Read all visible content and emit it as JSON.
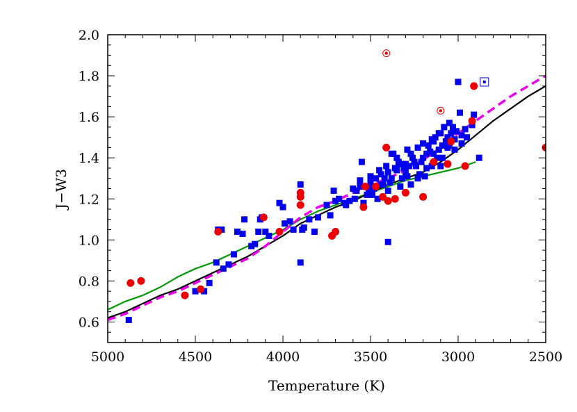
{
  "chart_data": {
    "type": "scatter",
    "title": "",
    "xlabel": "Temperature (K)",
    "ylabel": "J−W3",
    "xlim": [
      5000,
      2500
    ],
    "ylim": [
      0.5,
      2.0
    ],
    "x_reversed": true,
    "grid": false,
    "x_ticks": [
      5000,
      4500,
      4000,
      3500,
      3000,
      2500
    ],
    "x_tick_labels": [
      "5000",
      "4500",
      "4000",
      "3500",
      "3000",
      "2500"
    ],
    "y_ticks": [
      0.6,
      0.8,
      1.0,
      1.2,
      1.4,
      1.6,
      1.8,
      2.0
    ],
    "y_tick_labels": [
      "0.6",
      "0.8",
      "1.0",
      "1.2",
      "1.4",
      "1.6",
      "1.8",
      "2.0"
    ],
    "colors": {
      "blue_squares": "#0000ee",
      "red_circles": "#ee0000",
      "green_line": "#009900",
      "black_line": "#000000",
      "magenta_dashed": "#ee00ee"
    },
    "series": [
      {
        "marker": "square",
        "color": "#0000ee",
        "points": [
          [
            4880,
            0.61
          ],
          [
            4500,
            0.75
          ],
          [
            4450,
            0.75
          ],
          [
            4420,
            0.79
          ],
          [
            4380,
            0.89
          ],
          [
            4340,
            0.86
          ],
          [
            4310,
            0.88
          ],
          [
            4280,
            0.93
          ],
          [
            4370,
            1.05
          ],
          [
            4350,
            1.05
          ],
          [
            4260,
            1.04
          ],
          [
            4230,
            1.03
          ],
          [
            4220,
            1.1
          ],
          [
            4180,
            0.97
          ],
          [
            4160,
            0.98
          ],
          [
            4140,
            1.04
          ],
          [
            4130,
            1.1
          ],
          [
            4120,
            1.11
          ],
          [
            4100,
            1.04
          ],
          [
            4080,
            1.02
          ],
          [
            4020,
            1.18
          ],
          [
            4000,
            1.16
          ],
          [
            3990,
            1.08
          ],
          [
            3960,
            1.09
          ],
          [
            3940,
            1.05
          ],
          [
            3900,
            1.27
          ],
          [
            3900,
            1.22
          ],
          [
            3890,
            1.05
          ],
          [
            3880,
            1.06
          ],
          [
            3900,
            0.89
          ],
          [
            3850,
            1.1
          ],
          [
            3820,
            1.04
          ],
          [
            3800,
            1.11
          ],
          [
            3750,
            1.17
          ],
          [
            3730,
            1.12
          ],
          [
            3710,
            1.24
          ],
          [
            3700,
            1.19
          ],
          [
            3680,
            1.2
          ],
          [
            3650,
            1.18
          ],
          [
            3640,
            1.17
          ],
          [
            3620,
            1.19
          ],
          [
            3600,
            1.25
          ],
          [
            3590,
            1.2
          ],
          [
            3580,
            1.24
          ],
          [
            3560,
            1.29
          ],
          [
            3550,
            1.38
          ],
          [
            3540,
            1.18
          ],
          [
            3520,
            1.22
          ],
          [
            3510,
            1.25
          ],
          [
            3500,
            1.28
          ],
          [
            3490,
            1.22
          ],
          [
            3480,
            1.25
          ],
          [
            3470,
            1.3
          ],
          [
            3460,
            1.2
          ],
          [
            3450,
            1.34
          ],
          [
            3440,
            1.32
          ],
          [
            3430,
            1.27
          ],
          [
            3420,
            1.3
          ],
          [
            3410,
            1.36
          ],
          [
            3400,
            1.33
          ],
          [
            3400,
            1.24
          ],
          [
            3400,
            0.99
          ],
          [
            3390,
            1.28
          ],
          [
            3380,
            1.3
          ],
          [
            3370,
            1.42
          ],
          [
            3360,
            1.35
          ],
          [
            3350,
            1.4
          ],
          [
            3340,
            1.38
          ],
          [
            3330,
            1.26
          ],
          [
            3320,
            1.3
          ],
          [
            3310,
            1.35
          ],
          [
            3300,
            1.33
          ],
          [
            3300,
            1.37
          ],
          [
            3290,
            1.44
          ],
          [
            3280,
            1.36
          ],
          [
            3270,
            1.27
          ],
          [
            3260,
            1.4
          ],
          [
            3250,
            1.38
          ],
          [
            3240,
            1.36
          ],
          [
            3230,
            1.45
          ],
          [
            3220,
            1.32
          ],
          [
            3210,
            1.38
          ],
          [
            3200,
            1.4
          ],
          [
            3190,
            1.31
          ],
          [
            3180,
            1.42
          ],
          [
            3170,
            1.46
          ],
          [
            3160,
            1.43
          ],
          [
            3150,
            1.36
          ],
          [
            3140,
            1.48
          ],
          [
            3130,
            1.5
          ],
          [
            3120,
            1.4
          ],
          [
            3110,
            1.44
          ],
          [
            3100,
            1.52
          ],
          [
            3090,
            1.46
          ],
          [
            3080,
            1.55
          ],
          [
            3070,
            1.48
          ],
          [
            3060,
            1.5
          ],
          [
            3050,
            1.57
          ],
          [
            3040,
            1.52
          ],
          [
            3030,
            1.55
          ],
          [
            3020,
            1.49
          ],
          [
            3010,
            1.53
          ],
          [
            3000,
            1.77
          ],
          [
            2990,
            1.62
          ],
          [
            2980,
            1.51
          ],
          [
            2960,
            1.54
          ],
          [
            2950,
            1.5
          ],
          [
            2920,
            1.56
          ],
          [
            2910,
            1.61
          ],
          [
            2880,
            1.4
          ],
          [
            3380,
            1.42
          ],
          [
            3330,
            1.37
          ],
          [
            3270,
            1.42
          ],
          [
            3180,
            1.35
          ],
          [
            3140,
            1.42
          ],
          [
            3100,
            1.36
          ],
          [
            3060,
            1.45
          ],
          [
            3020,
            1.44
          ],
          [
            2980,
            1.47
          ],
          [
            3440,
            1.27
          ],
          [
            3500,
            1.31
          ],
          [
            3560,
            1.26
          ],
          [
            3230,
            1.3
          ],
          [
            3290,
            1.31
          ],
          [
            3350,
            1.34
          ],
          [
            3200,
            1.47
          ],
          [
            3150,
            1.49
          ],
          [
            3110,
            1.52
          ],
          [
            3090,
            1.4
          ],
          [
            3050,
            1.46
          ]
        ]
      },
      {
        "marker": "circle",
        "color": "#ee0000",
        "points": [
          [
            4870,
            0.79
          ],
          [
            4810,
            0.8
          ],
          [
            4560,
            0.73
          ],
          [
            4470,
            0.76
          ],
          [
            4370,
            1.04
          ],
          [
            4110,
            1.11
          ],
          [
            4020,
            1.04
          ],
          [
            3900,
            1.23
          ],
          [
            3900,
            1.21
          ],
          [
            3900,
            1.17
          ],
          [
            3720,
            1.02
          ],
          [
            3700,
            1.04
          ],
          [
            3540,
            1.16
          ],
          [
            3530,
            1.26
          ],
          [
            3470,
            1.26
          ],
          [
            3430,
            1.21
          ],
          [
            3410,
            1.45
          ],
          [
            3400,
            1.19
          ],
          [
            3360,
            1.2
          ],
          [
            3300,
            1.23
          ],
          [
            3200,
            1.21
          ],
          [
            3140,
            1.38
          ],
          [
            3060,
            1.37
          ],
          [
            3040,
            1.48
          ],
          [
            2960,
            1.36
          ],
          [
            2920,
            1.58
          ],
          [
            2910,
            1.75
          ],
          [
            2500,
            1.45
          ]
        ]
      },
      {
        "marker": "bullseye",
        "color": "#ee0000",
        "points": [
          [
            3410,
            1.91
          ],
          [
            3100,
            1.63
          ]
        ]
      },
      {
        "marker": "boxed-dot",
        "color": "#0000ee",
        "points": [
          [
            2850,
            1.77
          ]
        ]
      },
      {
        "kind": "line",
        "color": "#009900",
        "style": "solid",
        "points": [
          [
            5000,
            0.66
          ],
          [
            4900,
            0.7
          ],
          [
            4800,
            0.73
          ],
          [
            4700,
            0.77
          ],
          [
            4600,
            0.82
          ],
          [
            4500,
            0.86
          ],
          [
            4400,
            0.89
          ],
          [
            4300,
            0.93
          ],
          [
            4200,
            0.97
          ],
          [
            4100,
            1.01
          ],
          [
            4000,
            1.05
          ],
          [
            3900,
            1.1
          ],
          [
            3800,
            1.14
          ],
          [
            3700,
            1.17
          ],
          [
            3600,
            1.2
          ],
          [
            3500,
            1.23
          ],
          [
            3400,
            1.26
          ],
          [
            3300,
            1.29
          ],
          [
            3200,
            1.31
          ],
          [
            3100,
            1.33
          ],
          [
            3000,
            1.35
          ],
          [
            2900,
            1.38
          ]
        ]
      },
      {
        "kind": "line",
        "color": "#000000",
        "style": "solid",
        "points": [
          [
            5000,
            0.62
          ],
          [
            4900,
            0.65
          ],
          [
            4800,
            0.69
          ],
          [
            4700,
            0.73
          ],
          [
            4600,
            0.76
          ],
          [
            4500,
            0.8
          ],
          [
            4400,
            0.84
          ],
          [
            4300,
            0.88
          ],
          [
            4200,
            0.92
          ],
          [
            4100,
            0.97
          ],
          [
            4000,
            1.02
          ],
          [
            3900,
            1.08
          ],
          [
            3800,
            1.12
          ],
          [
            3700,
            1.16
          ],
          [
            3600,
            1.19
          ],
          [
            3500,
            1.23
          ],
          [
            3400,
            1.27
          ],
          [
            3300,
            1.3
          ],
          [
            3200,
            1.33
          ],
          [
            3100,
            1.38
          ],
          [
            3000,
            1.44
          ],
          [
            2900,
            1.51
          ],
          [
            2800,
            1.58
          ],
          [
            2700,
            1.64
          ],
          [
            2600,
            1.7
          ],
          [
            2500,
            1.75
          ]
        ]
      },
      {
        "kind": "line",
        "color": "#ee00ee",
        "style": "dashed",
        "points": [
          [
            5000,
            0.61
          ],
          [
            4900,
            0.64
          ],
          [
            4800,
            0.68
          ],
          [
            4700,
            0.72
          ],
          [
            4600,
            0.75
          ],
          [
            4500,
            0.79
          ],
          [
            4400,
            0.83
          ],
          [
            4300,
            0.87
          ],
          [
            4200,
            0.91
          ],
          [
            4100,
            0.97
          ],
          [
            4000,
            1.04
          ],
          [
            3900,
            1.11
          ],
          [
            3800,
            1.16
          ],
          [
            3700,
            1.19
          ],
          [
            3600,
            1.23
          ],
          [
            3500,
            1.27
          ],
          [
            3400,
            1.3
          ],
          [
            3300,
            1.34
          ],
          [
            3200,
            1.39
          ],
          [
            3100,
            1.45
          ],
          [
            3000,
            1.52
          ],
          [
            2900,
            1.58
          ],
          [
            2800,
            1.64
          ],
          [
            2700,
            1.7
          ],
          [
            2600,
            1.75
          ],
          [
            2500,
            1.8
          ]
        ]
      }
    ]
  }
}
